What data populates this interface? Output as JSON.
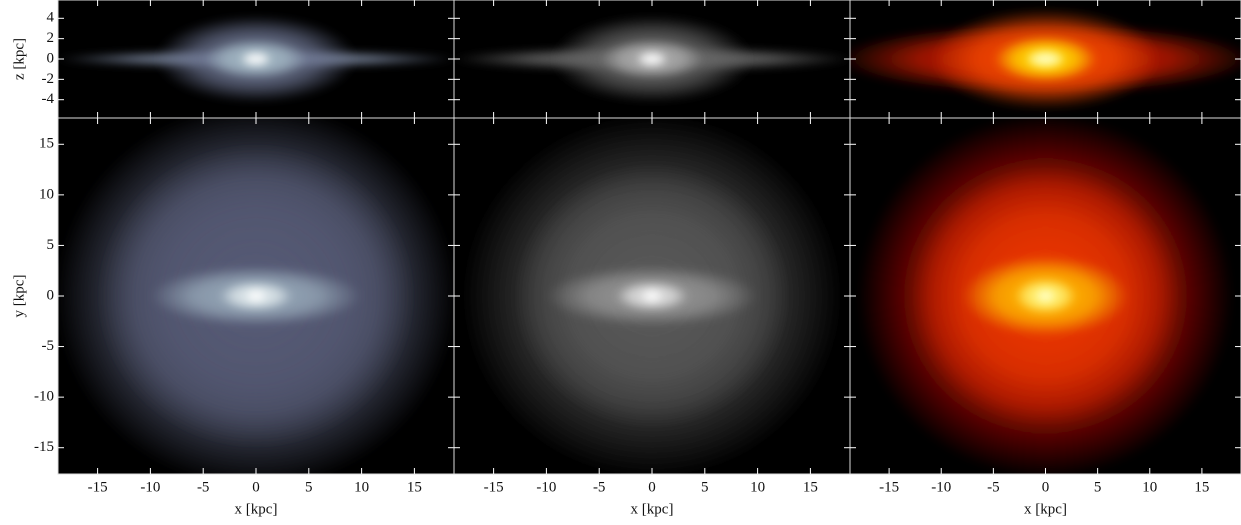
{
  "chart_data": [
    {
      "type": "image",
      "colormap": "bone",
      "xlim": [
        -18.75,
        18.75
      ],
      "ylim": [
        -5.8,
        5.8
      ],
      "xticks": [
        -15,
        -10,
        -5,
        0,
        5,
        10,
        15
      ],
      "yticks": [
        -4,
        -2,
        0,
        2,
        4
      ],
      "ylabel": "z [kpc]"
    },
    {
      "type": "image",
      "colormap": "gray",
      "xlim": [
        -18.75,
        18.75
      ],
      "ylim": [
        -5.8,
        5.8
      ],
      "xticks": [
        -15,
        -10,
        -5,
        0,
        5,
        10,
        15
      ],
      "yticks": [
        -4,
        -2,
        0,
        2,
        4
      ]
    },
    {
      "type": "image",
      "colormap": "hot",
      "xlim": [
        -18.75,
        18.75
      ],
      "ylim": [
        -5.8,
        5.8
      ],
      "xticks": [
        -15,
        -10,
        -5,
        0,
        5,
        10,
        15
      ],
      "yticks": [
        -4,
        -2,
        0,
        2,
        4
      ]
    },
    {
      "type": "image",
      "colormap": "bone",
      "xlim": [
        -18.75,
        18.75
      ],
      "ylim": [
        -17.6,
        17.6
      ],
      "xticks": [
        -15,
        -10,
        -5,
        0,
        5,
        10,
        15
      ],
      "yticks": [
        -15,
        -10,
        -5,
        0,
        5,
        10,
        15
      ],
      "xlabel": "x [kpc]",
      "ylabel": "y [kpc]"
    },
    {
      "type": "image",
      "colormap": "gray",
      "xlim": [
        -18.75,
        18.75
      ],
      "ylim": [
        -17.6,
        17.6
      ],
      "xticks": [
        -15,
        -10,
        -5,
        0,
        5,
        10,
        15
      ],
      "yticks": [
        -15,
        -10,
        -5,
        0,
        5,
        10,
        15
      ],
      "xlabel": "x [kpc]"
    },
    {
      "type": "image",
      "colormap": "hot",
      "xlim": [
        -18.75,
        18.75
      ],
      "ylim": [
        -17.6,
        17.6
      ],
      "xticks": [
        -15,
        -10,
        -5,
        0,
        5,
        10,
        15
      ],
      "yticks": [
        -15,
        -10,
        -5,
        0,
        5,
        10,
        15
      ],
      "xlabel": "x [kpc]"
    }
  ]
}
